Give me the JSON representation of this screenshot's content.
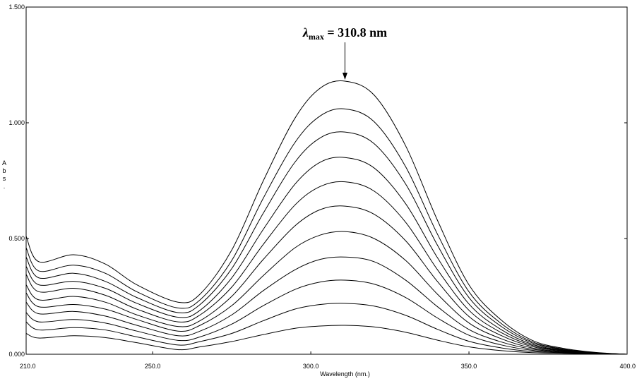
{
  "chart_data": {
    "type": "line",
    "title": "",
    "xlabel": "Wavelength (nm.)",
    "ylabel": "Abs.",
    "xlim": [
      210.0,
      400.0
    ],
    "ylim": [
      0.0,
      1.5
    ],
    "x_ticks": [
      "210.0",
      "250.0",
      "300.0",
      "350.0",
      "400.0"
    ],
    "y_ticks": [
      "0.000",
      "0.500",
      "1.000",
      "1.500"
    ],
    "grid": false,
    "legend": "none",
    "line_color": "#000000",
    "annotation": {
      "symbol": "λ",
      "subscript": "max",
      "text": " = 310.8 nm",
      "x": 310.8
    },
    "x": [
      210,
      214,
      225,
      235,
      245,
      258,
      265,
      275,
      285,
      295,
      303,
      310.8,
      320,
      330,
      340,
      350,
      360,
      370,
      380,
      390,
      400
    ],
    "series": [
      {
        "values": [
          0.51,
          0.4,
          0.43,
          0.39,
          0.3,
          0.225,
          0.26,
          0.45,
          0.75,
          1.02,
          1.15,
          1.18,
          1.12,
          0.9,
          0.58,
          0.3,
          0.15,
          0.06,
          0.025,
          0.008,
          0.0
        ]
      },
      {
        "values": [
          0.46,
          0.36,
          0.385,
          0.35,
          0.27,
          0.2,
          0.235,
          0.405,
          0.675,
          0.915,
          1.03,
          1.06,
          1.005,
          0.81,
          0.52,
          0.27,
          0.135,
          0.054,
          0.022,
          0.007,
          0.0
        ]
      },
      {
        "values": [
          0.42,
          0.33,
          0.35,
          0.315,
          0.245,
          0.18,
          0.215,
          0.37,
          0.61,
          0.83,
          0.935,
          0.96,
          0.91,
          0.735,
          0.472,
          0.245,
          0.122,
          0.049,
          0.02,
          0.006,
          0.0
        ]
      },
      {
        "values": [
          0.38,
          0.3,
          0.315,
          0.285,
          0.22,
          0.16,
          0.19,
          0.33,
          0.54,
          0.735,
          0.83,
          0.85,
          0.805,
          0.65,
          0.418,
          0.217,
          0.108,
          0.043,
          0.018,
          0.005,
          0.0
        ]
      },
      {
        "values": [
          0.345,
          0.27,
          0.285,
          0.255,
          0.195,
          0.14,
          0.17,
          0.29,
          0.475,
          0.645,
          0.725,
          0.745,
          0.705,
          0.57,
          0.366,
          0.19,
          0.095,
          0.038,
          0.016,
          0.005,
          0.0
        ]
      },
      {
        "values": [
          0.3,
          0.235,
          0.25,
          0.225,
          0.17,
          0.12,
          0.145,
          0.25,
          0.41,
          0.555,
          0.625,
          0.64,
          0.605,
          0.49,
          0.315,
          0.163,
          0.082,
          0.033,
          0.014,
          0.004,
          0.0
        ]
      },
      {
        "values": [
          0.265,
          0.205,
          0.215,
          0.195,
          0.15,
          0.1,
          0.125,
          0.21,
          0.34,
          0.46,
          0.515,
          0.53,
          0.5,
          0.405,
          0.26,
          0.135,
          0.068,
          0.027,
          0.012,
          0.004,
          0.0
        ]
      },
      {
        "values": [
          0.225,
          0.175,
          0.185,
          0.165,
          0.125,
          0.08,
          0.1,
          0.17,
          0.275,
          0.365,
          0.41,
          0.42,
          0.4,
          0.32,
          0.206,
          0.107,
          0.054,
          0.022,
          0.01,
          0.003,
          0.0
        ]
      },
      {
        "values": [
          0.18,
          0.14,
          0.15,
          0.135,
          0.1,
          0.06,
          0.075,
          0.13,
          0.21,
          0.28,
          0.312,
          0.32,
          0.303,
          0.245,
          0.157,
          0.082,
          0.041,
          0.017,
          0.008,
          0.002,
          0.0
        ]
      },
      {
        "values": [
          0.14,
          0.105,
          0.115,
          0.105,
          0.075,
          0.04,
          0.055,
          0.09,
          0.145,
          0.195,
          0.215,
          0.22,
          0.208,
          0.168,
          0.108,
          0.056,
          0.028,
          0.012,
          0.006,
          0.002,
          0.0
        ]
      },
      {
        "values": [
          0.09,
          0.07,
          0.08,
          0.072,
          0.05,
          0.02,
          0.032,
          0.055,
          0.085,
          0.112,
          0.122,
          0.125,
          0.118,
          0.095,
          0.061,
          0.032,
          0.016,
          0.007,
          0.004,
          0.001,
          0.0
        ]
      }
    ]
  }
}
